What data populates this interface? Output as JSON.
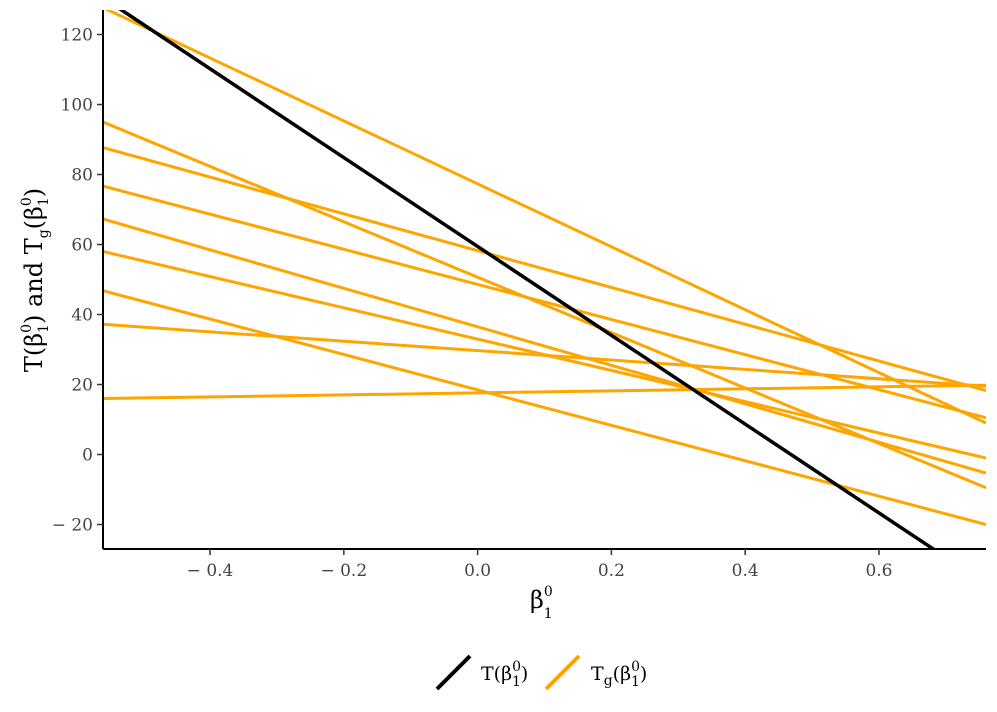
{
  "chart_data": {
    "type": "line",
    "xlim": [
      -0.56,
      0.76
    ],
    "ylim": [
      -27,
      127
    ],
    "x_ticks": [
      -0.4,
      -0.2,
      0.0,
      0.2,
      0.4,
      0.6
    ],
    "x_tick_labels": [
      "− 0.4",
      "− 0.2",
      "0.0",
      "0.2",
      "0.4",
      "0.6"
    ],
    "y_ticks": [
      -20,
      0,
      20,
      40,
      60,
      80,
      100,
      120
    ],
    "y_tick_labels": [
      "− 20",
      "0",
      "20",
      "40",
      "60",
      "80",
      "100",
      "120"
    ],
    "grid": false,
    "legend_position": "bottom",
    "colors": {
      "T": "#000000",
      "Tg": "#FFA500"
    },
    "series": [
      {
        "name": "T",
        "kind": "T",
        "x": [
          -0.56,
          0.76
        ],
        "y": [
          130.5,
          -37.0
        ]
      },
      {
        "name": "Tg",
        "kind": "Tg",
        "x": [
          -0.56,
          0.76
        ],
        "y": [
          127.7,
          9.0
        ]
      },
      {
        "name": "Tg",
        "kind": "Tg",
        "x": [
          -0.56,
          0.76
        ],
        "y": [
          95.0,
          -9.5
        ]
      },
      {
        "name": "Tg",
        "kind": "Tg",
        "x": [
          -0.56,
          0.76
        ],
        "y": [
          87.7,
          18.3
        ]
      },
      {
        "name": "Tg",
        "kind": "Tg",
        "x": [
          -0.56,
          0.76
        ],
        "y": [
          76.7,
          10.5
        ]
      },
      {
        "name": "Tg",
        "kind": "Tg",
        "x": [
          -0.56,
          0.76
        ],
        "y": [
          67.3,
          -5.3
        ]
      },
      {
        "name": "Tg",
        "kind": "Tg",
        "x": [
          -0.56,
          0.76
        ],
        "y": [
          58.0,
          -1.0
        ]
      },
      {
        "name": "Tg",
        "kind": "Tg",
        "x": [
          -0.56,
          0.76
        ],
        "y": [
          46.8,
          -20.0
        ]
      },
      {
        "name": "Tg",
        "kind": "Tg",
        "x": [
          -0.56,
          0.76
        ],
        "y": [
          37.2,
          19.5
        ]
      },
      {
        "name": "Tg",
        "kind": "Tg",
        "x": [
          -0.56,
          0.76
        ],
        "y": [
          16.0,
          19.8
        ]
      }
    ]
  }
}
